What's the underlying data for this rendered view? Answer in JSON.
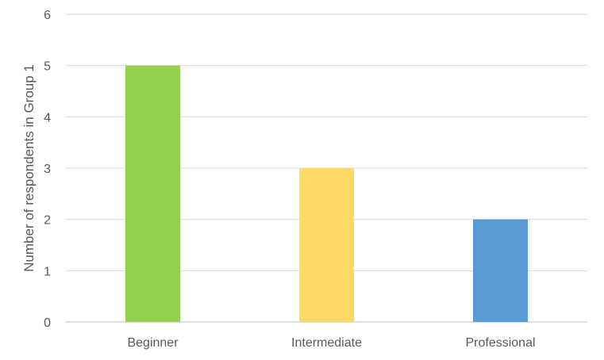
{
  "chart_data": {
    "type": "bar",
    "title": "",
    "xlabel": "",
    "ylabel": "Number of respondents in Group 1",
    "categories": [
      "Beginner",
      "Intermediate",
      "Professional"
    ],
    "values": [
      5,
      3,
      2
    ],
    "bar_colors": [
      "#92d050",
      "#ffd966",
      "#5b9bd5"
    ],
    "ylim": [
      0,
      6
    ],
    "yticks": [
      0,
      1,
      2,
      3,
      4,
      5,
      6
    ],
    "grid": true,
    "legend": "none"
  }
}
